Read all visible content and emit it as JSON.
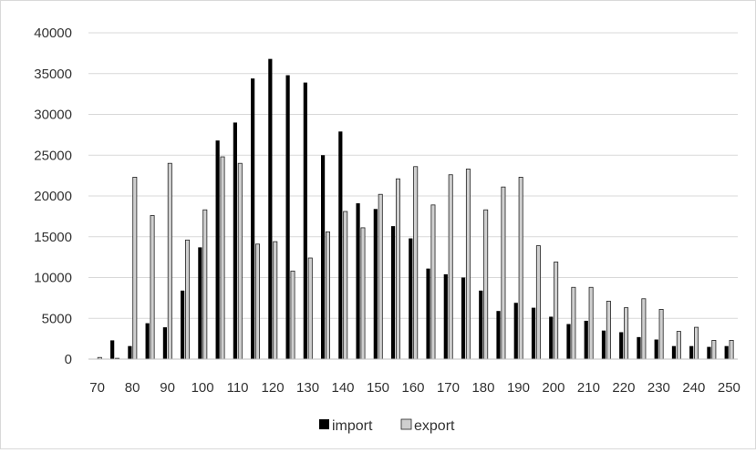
{
  "chart_data": {
    "type": "bar",
    "title": "",
    "xlabel": "",
    "ylabel": "",
    "ylim": [
      0,
      40000
    ],
    "y_ticks": [
      "0",
      "5000",
      "10000",
      "15000",
      "20000",
      "25000",
      "30000",
      "35000",
      "40000"
    ],
    "x_tick_labels": [
      "70",
      "80",
      "90",
      "100",
      "110",
      "120",
      "130",
      "140",
      "150",
      "160",
      "170",
      "180",
      "190",
      "200",
      "210",
      "220",
      "230",
      "240",
      "250"
    ],
    "categories": [
      "70",
      "75",
      "80",
      "85",
      "90",
      "95",
      "100",
      "105",
      "110",
      "115",
      "120",
      "125",
      "130",
      "135",
      "140",
      "145",
      "150",
      "155",
      "160",
      "165",
      "170",
      "175",
      "180",
      "185",
      "190",
      "195",
      "200",
      "205",
      "210",
      "215",
      "220",
      "225",
      "230",
      "235",
      "240",
      "245",
      "250"
    ],
    "grid": true,
    "legend_position": "bottom",
    "series": [
      {
        "name": "import",
        "color": "#000000",
        "values": [
          0,
          2300,
          1600,
          4400,
          3900,
          8400,
          13700,
          26800,
          29000,
          34400,
          36800,
          34800,
          33900,
          25000,
          27900,
          19100,
          18400,
          16300,
          14800,
          11100,
          10400,
          10000,
          8400,
          5900,
          6900,
          6300,
          5200,
          4300,
          4700,
          3500,
          3300,
          2700,
          2400,
          1600,
          1600,
          1500,
          1600
        ]
      },
      {
        "name": "export",
        "color": "#cfcfcf",
        "values": [
          200,
          100,
          22300,
          17600,
          24000,
          14600,
          18300,
          24800,
          24000,
          14100,
          14400,
          10800,
          12400,
          15600,
          18100,
          16100,
          20200,
          22100,
          23600,
          18900,
          22600,
          23300,
          18300,
          21100,
          22300,
          13900,
          11900,
          8800,
          8800,
          7100,
          6300,
          7400,
          6100,
          3400,
          3900,
          2300,
          2300
        ]
      }
    ]
  }
}
